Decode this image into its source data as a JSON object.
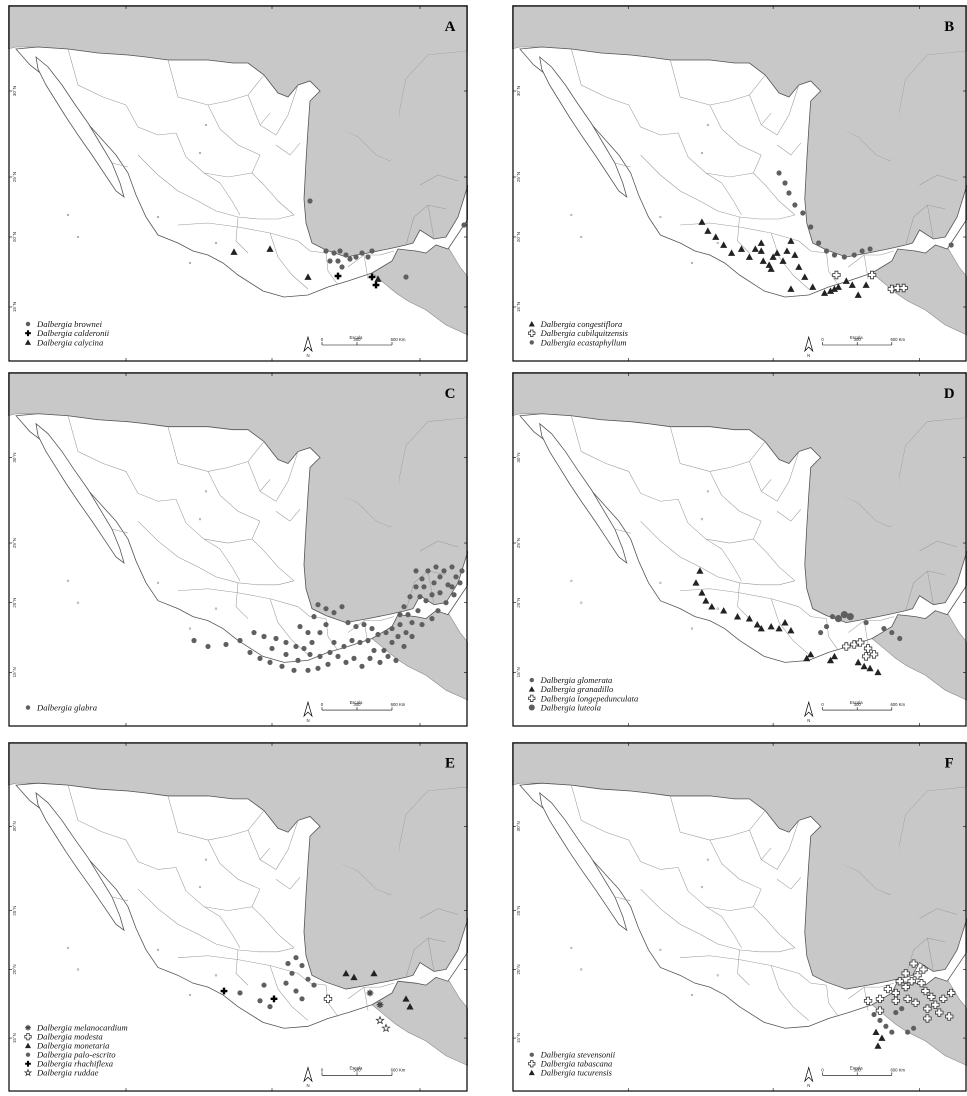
{
  "figure": {
    "colors": {
      "sea": "#c8c8c8",
      "land": "#ffffff",
      "border": "#8a8a8a",
      "marker": "#5f5f5f",
      "marker_dark": "#222222"
    },
    "lon_ticks": [
      "110°W",
      "100°W",
      "90°W"
    ],
    "lat_ticks": [
      "30°N",
      "25°N",
      "20°N",
      "15°N"
    ],
    "north_label": "N",
    "scale": {
      "title": "Escala",
      "ticks": [
        "0",
        "300",
        "600 Km"
      ]
    },
    "panels": [
      {
        "letter": "A",
        "legend": [
          {
            "symbol": "dot",
            "label": "Dalbergia brownei"
          },
          {
            "symbol": "cross",
            "label": "Dalbergia calderonii"
          },
          {
            "symbol": "triangle",
            "label": "Dalbergia calycina"
          }
        ]
      },
      {
        "letter": "B",
        "legend": [
          {
            "symbol": "triangle",
            "label": "Dalbergia congestiflora"
          },
          {
            "symbol": "opencross",
            "label": "Dalbergia cubilquitzensis"
          },
          {
            "symbol": "dot",
            "label": "Dalbergia ecastaphyllum"
          }
        ]
      },
      {
        "letter": "C",
        "legend": [
          {
            "symbol": "dot",
            "label": "Dalbergia glabra"
          }
        ]
      },
      {
        "letter": "D",
        "legend": [
          {
            "symbol": "dot",
            "label": "Dalbergia glomerata"
          },
          {
            "symbol": "triangle",
            "label": "Dalbergia granadillo"
          },
          {
            "symbol": "opencross",
            "label": "Dalbergia longepedunculata"
          },
          {
            "symbol": "bigdot",
            "label": "Dalbergia luteola"
          }
        ]
      },
      {
        "letter": "E",
        "legend": [
          {
            "symbol": "asterisk",
            "label": "Dalbergia melanocardium"
          },
          {
            "symbol": "opencross",
            "label": "Dalbergia modesta"
          },
          {
            "symbol": "triangle",
            "label": "Dalbergia monetaria"
          },
          {
            "symbol": "dot",
            "label": "Dalbergia palo-escrito"
          },
          {
            "symbol": "cross",
            "label": "Dalbergia rhachiflexa"
          },
          {
            "symbol": "star",
            "label": "Dalbergia ruddae"
          }
        ]
      },
      {
        "letter": "F",
        "legend": [
          {
            "symbol": "dot",
            "label": "Dalbergia stevensonii"
          },
          {
            "symbol": "opencross",
            "label": "Dalbergia tabascana"
          },
          {
            "symbol": "triangle",
            "label": "Dalbergia tucurensis"
          }
        ]
      }
    ]
  }
}
